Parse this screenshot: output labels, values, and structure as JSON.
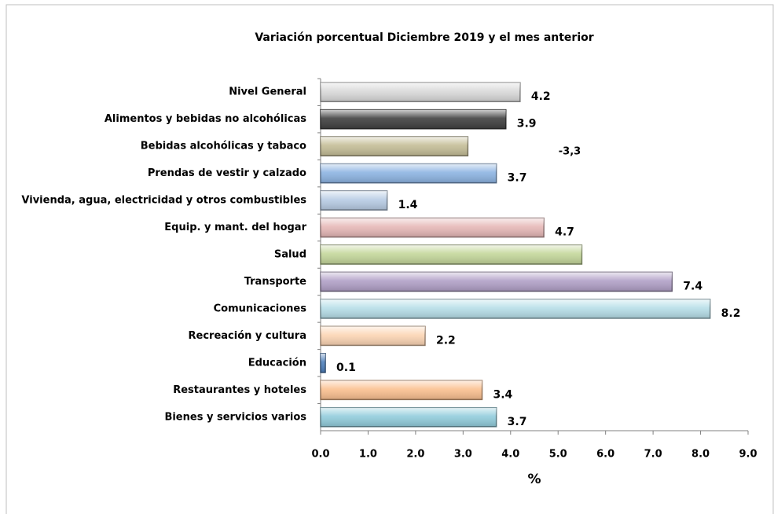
{
  "chart_data": {
    "type": "barh",
    "title": "Variación porcentual  Diciembre  2019 y el mes anterior",
    "xlabel": "%",
    "annotations": [
      "-3,3"
    ],
    "categories": [
      "Nivel General",
      "Alimentos y bebidas no alcohólicas",
      "Bebidas alcohólicas y tabaco",
      "Prendas de vestir y calzado",
      "Vivienda, agua, electricidad y otros combustibles",
      "Equip. y mant. del hogar",
      "Salud",
      "Transporte",
      "Comunicaciones",
      "Recreación y cultura",
      "Educación",
      "Restaurantes y hoteles",
      "Bienes y servicios varios"
    ],
    "values": [
      4.2,
      3.9,
      3.1,
      3.7,
      1.4,
      4.7,
      5.5,
      7.4,
      8.2,
      2.2,
      0.1,
      3.4,
      3.7
    ],
    "value_labels": [
      "4.2",
      "3.9",
      null,
      "3.7",
      "1.4",
      "4.7",
      null,
      "7.4",
      "8.2",
      "2.2",
      "0.1",
      "3.4",
      "3.7"
    ],
    "colors": [
      "#d9d9d9",
      "#404040",
      "#c4bd97",
      "#8db4e2",
      "#b8cce4",
      "#e6b8b7",
      "#c4d79b",
      "#b1a0c7",
      "#b7dee8",
      "#fcd5b4",
      "#4f81bd",
      "#fac090",
      "#92cddc"
    ],
    "xlim": [
      0,
      9
    ],
    "xticks": [
      {
        "value": 0,
        "label": "0.0"
      },
      {
        "value": 1,
        "label": "1.0"
      },
      {
        "value": 2,
        "label": "2.0"
      },
      {
        "value": 3,
        "label": "3.0"
      },
      {
        "value": 4,
        "label": "4.0"
      },
      {
        "value": 5,
        "label": "5.0"
      },
      {
        "value": 6,
        "label": "6.0"
      },
      {
        "value": 7,
        "label": "7.0"
      },
      {
        "value": 8,
        "label": "8.0"
      },
      {
        "value": 9,
        "label": "9.0"
      }
    ],
    "grid": false
  }
}
